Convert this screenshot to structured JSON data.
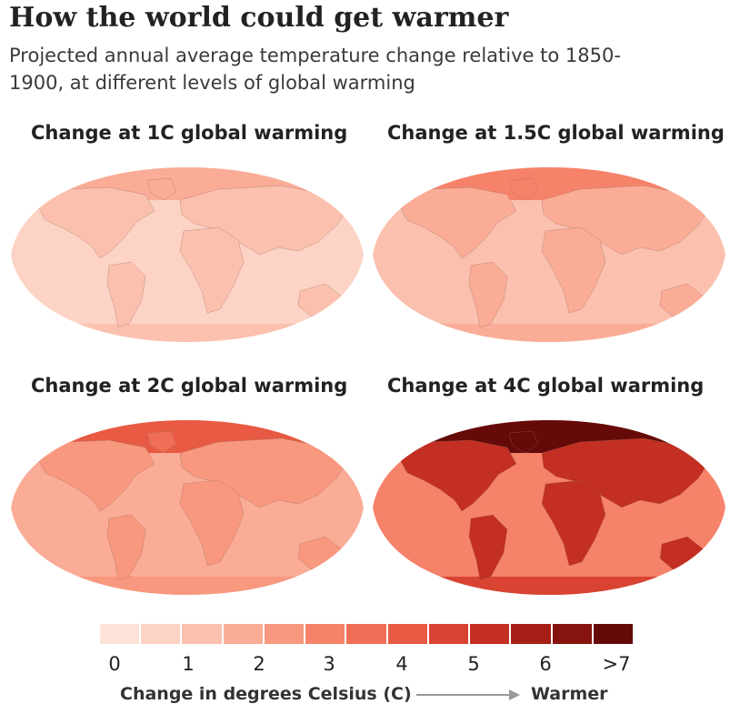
{
  "header": {
    "title": "How the world could get warmer",
    "subtitle": "Projected annual average temperature change relative to 1850-1900, at different levels of global warming"
  },
  "panels": [
    {
      "title": "Change at 1C global warming",
      "level": 1
    },
    {
      "title": "Change at 1.5C global warming",
      "level": 1.5
    },
    {
      "title": "Change at 2C global warming",
      "level": 2
    },
    {
      "title": "Change at 4C global warming",
      "level": 4
    }
  ],
  "legend": {
    "colors": [
      "#fde3da",
      "#fcd3c5",
      "#fbc0ae",
      "#faac97",
      "#f8987f",
      "#f6826a",
      "#f06e55",
      "#e85a43",
      "#d94332",
      "#c32f23",
      "#a61e17",
      "#87130e",
      "#650a08"
    ],
    "ticks": [
      "0",
      "1",
      "2",
      "3",
      "4",
      "5",
      "6",
      ">7"
    ],
    "unit_label": "Change in degrees Celsius (C)",
    "direction_label": "Warmer"
  }
}
